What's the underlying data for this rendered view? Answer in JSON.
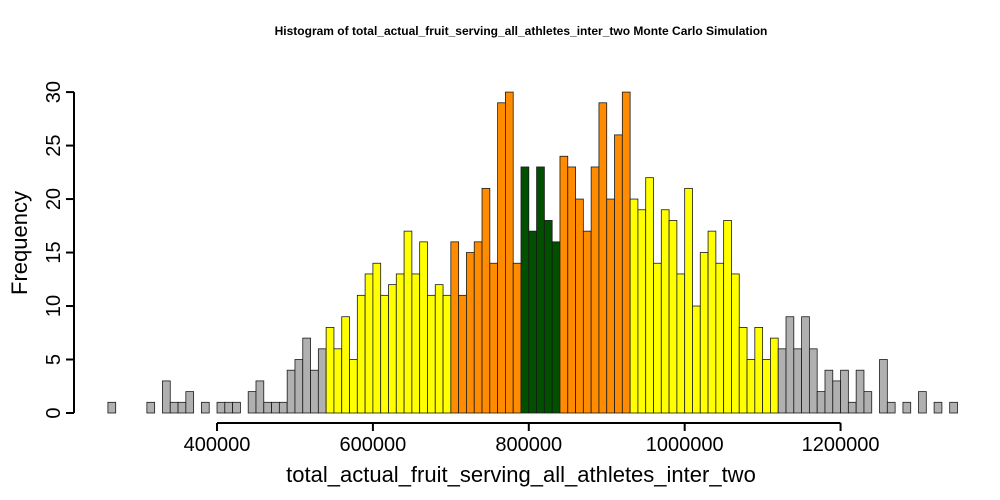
{
  "chart_data": {
    "type": "bar",
    "title": "Histogram of  total_actual_fruit_serving_all_athletes_inter_two  Monte Carlo Simulation",
    "xlabel": "total_actual_fruit_serving_all_athletes_inter_two",
    "ylabel": "Frequency",
    "xlim": [
      255000,
      1325000
    ],
    "ylim": [
      0,
      33
    ],
    "x_ticks": [
      400000,
      600000,
      800000,
      1000000,
      1200000
    ],
    "x_tick_labels": [
      "400000",
      "600000",
      "800000",
      "1000000",
      "1200000"
    ],
    "y_ticks": [
      0,
      5,
      10,
      15,
      20,
      25,
      30
    ],
    "y_tick_labels": [
      "0",
      "5",
      "10",
      "15",
      "20",
      "25",
      "30"
    ],
    "grid": false,
    "bin_start": 260000,
    "bin_width": 10000,
    "frequencies": [
      1,
      0,
      0,
      0,
      0,
      1,
      0,
      3,
      1,
      1,
      2,
      0,
      1,
      0,
      1,
      1,
      1,
      0,
      2,
      3,
      1,
      1,
      1,
      4,
      5,
      7,
      4,
      6,
      8,
      6,
      9,
      5,
      11,
      13,
      14,
      11,
      12,
      13,
      17,
      13,
      16,
      11,
      12,
      11,
      16,
      11,
      15,
      16,
      21,
      14,
      29,
      30,
      14,
      23,
      17,
      23,
      18,
      16,
      24,
      23,
      20,
      17,
      23,
      29,
      20,
      26,
      30,
      20,
      19,
      22,
      14,
      19,
      18,
      13,
      21,
      10,
      15,
      17,
      14,
      18,
      13,
      8,
      5,
      8,
      5,
      7,
      6,
      9,
      6,
      9,
      6,
      2,
      4,
      3,
      4,
      1,
      4,
      2,
      0,
      5,
      1,
      0,
      1,
      0,
      2,
      0,
      1,
      0,
      1
    ],
    "colors": {
      "gray": "#b0b0b0",
      "yellow": "#ffff00",
      "orange": "#ff8c00",
      "dark_green": "#005000",
      "outline": "#1a1a1a"
    },
    "color_bands": [
      {
        "color": "gray",
        "from": 255000,
        "to": 540000
      },
      {
        "color": "yellow",
        "from": 540000,
        "to": 700000
      },
      {
        "color": "orange",
        "from": 700000,
        "to": 790000
      },
      {
        "color": "dark_green",
        "from": 790000,
        "to": 840000
      },
      {
        "color": "orange",
        "from": 840000,
        "to": 930000
      },
      {
        "color": "yellow",
        "from": 930000,
        "to": 1120000
      },
      {
        "color": "gray",
        "from": 1120000,
        "to": 1325000
      }
    ]
  }
}
